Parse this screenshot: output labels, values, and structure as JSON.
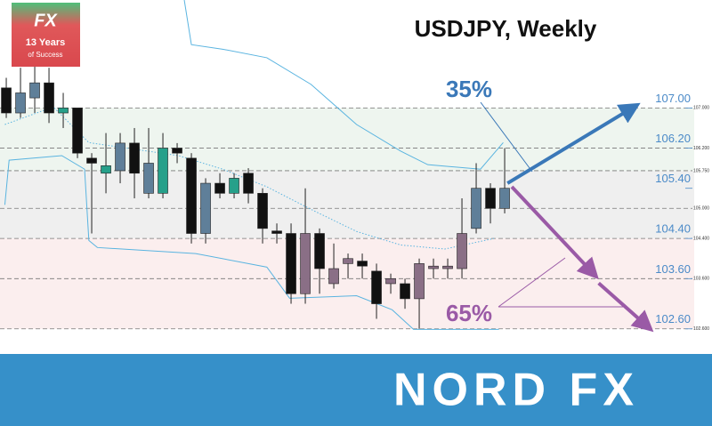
{
  "logo": {
    "brand": "FX",
    "line1": "13 Years",
    "line2": "of Success"
  },
  "banner": {
    "brand": "NORD FX"
  },
  "chart_data": {
    "type": "candlestick",
    "title": "USDJPY, Weekly",
    "xlim": [
      -0.44,
      49.56
    ],
    "ylim": [
      102.1,
      109.15
    ],
    "yticks": [
      {
        "value": 107.0,
        "label": "107.00"
      },
      {
        "value": 106.2,
        "label": "106.20"
      },
      {
        "value": 105.4,
        "label": "105.40"
      },
      {
        "value": 104.4,
        "label": "104.40"
      },
      {
        "value": 103.6,
        "label": "103.60"
      },
      {
        "value": 102.6,
        "label": "102.60"
      }
    ],
    "levels": [
      {
        "value": 107.0,
        "label": "107.000"
      },
      {
        "value": 106.2,
        "label": "106.200"
      },
      {
        "value": 105.75,
        "label": "105.750"
      },
      {
        "value": 105.0,
        "label": "105.000"
      },
      {
        "value": 104.4,
        "label": "104.400"
      },
      {
        "value": 103.6,
        "label": "103.600"
      },
      {
        "value": 102.6,
        "label": "102.600"
      }
    ],
    "zones": [
      {
        "from": 105.75,
        "to": 107.0,
        "color": "#eef5ef"
      },
      {
        "from": 104.4,
        "to": 105.75,
        "color": "#efefef"
      },
      {
        "from": 102.6,
        "to": 104.4,
        "color": "#fbeeee"
      }
    ],
    "x": [
      0,
      1,
      2,
      3,
      4,
      5,
      6,
      7,
      8,
      9,
      10,
      11,
      12,
      13,
      14,
      15,
      16,
      17,
      18,
      19,
      20,
      21,
      22,
      23,
      24,
      25,
      26,
      27,
      28,
      29,
      30,
      31,
      32,
      33,
      34,
      35
    ],
    "open": [
      107.4,
      106.9,
      107.2,
      107.5,
      106.9,
      107.0,
      106.0,
      105.7,
      105.75,
      106.3,
      105.3,
      105.3,
      106.2,
      106.0,
      104.5,
      105.5,
      105.3,
      105.7,
      105.3,
      104.55,
      104.5,
      103.3,
      104.5,
      103.5,
      103.9,
      103.95,
      103.75,
      103.5,
      103.5,
      103.2,
      103.8,
      103.8,
      103.8,
      104.6,
      105.4,
      105.0
    ],
    "high": [
      107.6,
      107.8,
      107.9,
      107.8,
      107.3,
      107.0,
      106.1,
      106.5,
      106.5,
      106.6,
      106.6,
      106.5,
      106.3,
      106.1,
      105.6,
      105.7,
      105.7,
      105.8,
      105.4,
      104.7,
      104.7,
      105.4,
      104.6,
      104.3,
      104.1,
      104.1,
      103.9,
      103.7,
      103.6,
      104.0,
      104.0,
      104.0,
      105.2,
      105.9,
      105.5,
      106.2
    ],
    "low": [
      106.8,
      106.8,
      106.9,
      106.7,
      106.6,
      106.0,
      104.5,
      105.3,
      105.5,
      105.2,
      105.2,
      105.2,
      105.9,
      104.3,
      104.3,
      105.2,
      105.2,
      105.1,
      104.3,
      104.3,
      103.1,
      103.1,
      103.3,
      103.4,
      103.6,
      103.6,
      102.8,
      103.3,
      103.0,
      102.6,
      103.6,
      103.6,
      103.6,
      104.5,
      104.7,
      104.9
    ],
    "close": [
      106.9,
      107.3,
      107.5,
      106.9,
      107.0,
      106.1,
      105.9,
      105.85,
      106.3,
      105.7,
      105.9,
      106.2,
      106.1,
      104.5,
      105.5,
      105.3,
      105.6,
      105.3,
      104.6,
      104.5,
      103.3,
      104.5,
      103.8,
      103.8,
      104.0,
      103.85,
      103.1,
      103.6,
      103.2,
      103.9,
      103.85,
      103.85,
      104.5,
      105.4,
      105.0,
      105.4
    ],
    "colors": [
      "#111111",
      "#5f7f99",
      "#5f7f99",
      "#111111",
      "#26a08a",
      "#111111",
      "#111111",
      "#26a08a",
      "#5f7f99",
      "#111111",
      "#5f7f99",
      "#26a08a",
      "#111111",
      "#111111",
      "#5f7f99",
      "#111111",
      "#26a08a",
      "#111111",
      "#111111",
      "#111111",
      "#111111",
      "#8a6f86",
      "#111111",
      "#8a6f86",
      "#8a6f86",
      "#111111",
      "#111111",
      "#8a6f86",
      "#111111",
      "#8a6f86",
      "#8a6f86",
      "#8a6f86",
      "#8a6f86",
      "#5f7f99",
      "#111111",
      "#5f7f99"
    ],
    "bands": [
      {
        "color": "#5ab4e0",
        "style": "solid",
        "x": [
          12.5,
          13,
          15.2,
          18.3,
          21.4,
          24.6,
          27.7,
          29.6,
          33.3,
          34.9
        ],
        "values": [
          109.15,
          108.26,
          108.17,
          108.0,
          107.47,
          106.67,
          106.14,
          105.87,
          105.78,
          106.31
        ]
      },
      {
        "color": "#5ab4e0",
        "style": "solid",
        "x": [
          -0.1,
          0.2,
          3.9,
          5.5,
          5.8,
          6.4,
          13.3,
          18.3,
          19.9,
          24.6,
          27.1,
          28.6,
          34.6
        ],
        "values": [
          105.07,
          105.96,
          106.05,
          105.78,
          104.36,
          104.22,
          104.1,
          103.83,
          103.21,
          103.26,
          102.98,
          102.59,
          102.59
        ]
      },
      {
        "color": "#5ab4e0",
        "style": "dotted",
        "x": [
          -0.1,
          3.3,
          5.8,
          12.1,
          15.2,
          18.3,
          21.4,
          24.6,
          27.7,
          30.8,
          34.25
        ],
        "values": [
          106.67,
          107.02,
          106.31,
          106.05,
          105.78,
          105.43,
          104.98,
          104.54,
          104.27,
          104.19,
          104.4
        ]
      }
    ],
    "forecasts": [
      {
        "label": "35%",
        "color": "#3a78b8",
        "x": [
          35.2,
          43.9
        ],
        "values": [
          105.5,
          106.99
        ]
      },
      {
        "label": "65%",
        "color": "#9a5aa6",
        "x": [
          35.5,
          41.1
        ],
        "values": [
          105.43,
          103.74
        ]
      },
      {
        "color": "#9a5aa6",
        "x": [
          41.6,
          44.9
        ],
        "values": [
          103.51,
          102.68
        ]
      }
    ]
  }
}
